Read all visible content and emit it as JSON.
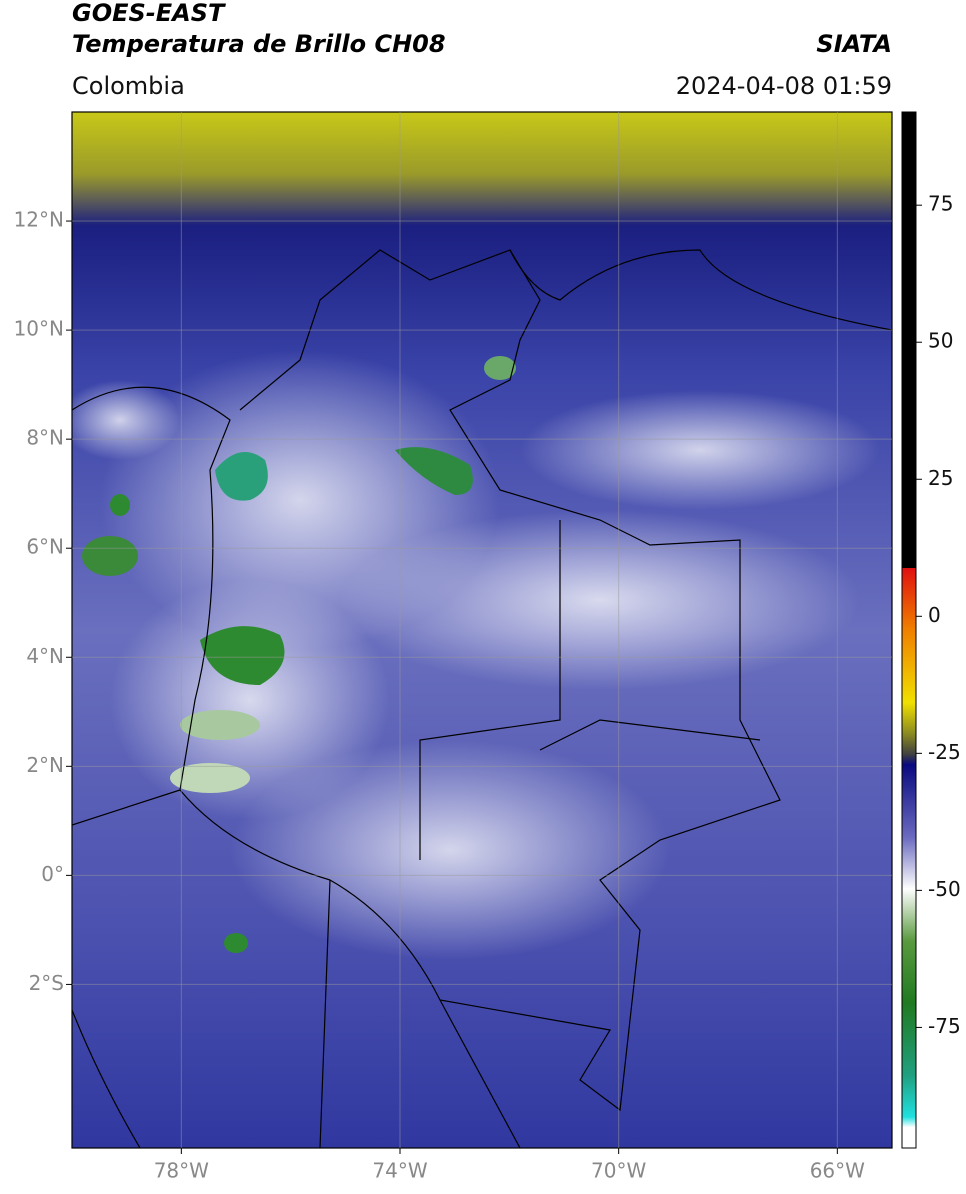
{
  "header": {
    "title": "GOES-EAST",
    "subtitle": "Temperatura de Brillo CH08",
    "source": "SIATA",
    "region": "Colombia",
    "timestamp": "2024-04-08 01:59"
  },
  "map": {
    "xlim": [
      -80,
      -65
    ],
    "ylim": [
      -5,
      14
    ],
    "xticks": [
      {
        "value": -78,
        "label": "78°W"
      },
      {
        "value": -74,
        "label": "74°W"
      },
      {
        "value": -70,
        "label": "70°W"
      },
      {
        "value": -66,
        "label": "66°W"
      }
    ],
    "yticks": [
      {
        "value": 12,
        "label": "12°N"
      },
      {
        "value": 10,
        "label": "10°N"
      },
      {
        "value": 8,
        "label": "8°N"
      },
      {
        "value": 6,
        "label": "6°N"
      },
      {
        "value": 4,
        "label": "4°N"
      },
      {
        "value": 2,
        "label": "2°N"
      },
      {
        "value": 0,
        "label": "0°"
      },
      {
        "value": -2,
        "label": "2°S"
      }
    ],
    "grid": true
  },
  "colorbar": {
    "clim": [
      -97,
      92
    ],
    "ticks": [
      75,
      50,
      25,
      0,
      -25,
      -50,
      -75
    ]
  }
}
